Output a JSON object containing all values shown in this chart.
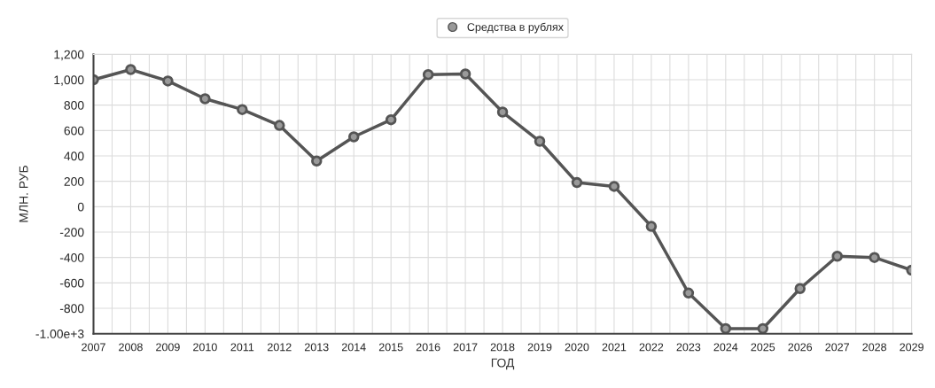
{
  "chart_data": {
    "type": "line",
    "xlabel": "ГОД",
    "ylabel": "МЛН. РУБ",
    "x": [
      2007,
      2008,
      2009,
      2010,
      2011,
      2012,
      2013,
      2014,
      2015,
      2016,
      2017,
      2018,
      2019,
      2020,
      2021,
      2022,
      2023,
      2024,
      2025,
      2026,
      2027,
      2028,
      2029
    ],
    "series": [
      {
        "name": "Средства в рублях",
        "color": "#555555",
        "values": [
          1000,
          1080,
          990,
          850,
          765,
          640,
          360,
          550,
          685,
          1040,
          1045,
          745,
          515,
          190,
          160,
          -155,
          -680,
          -960,
          -960,
          -645,
          -390,
          -400,
          -500
        ]
      }
    ],
    "xlim": [
      2007,
      2029
    ],
    "xticks": [
      2007,
      2008,
      2009,
      2010,
      2011,
      2012,
      2013,
      2014,
      2015,
      2016,
      2017,
      2018,
      2019,
      2020,
      2021,
      2022,
      2023,
      2024,
      2025,
      2026,
      2027,
      2028,
      2029
    ],
    "ylim": [
      -1000,
      1200
    ],
    "yticks": [
      {
        "value": -1000,
        "label": "-1.00e+3"
      },
      -800,
      -600,
      -400,
      -200,
      0,
      200,
      400,
      600,
      800,
      {
        "value": 1000,
        "label": "1,000"
      },
      {
        "value": 1200,
        "label": "1,200"
      }
    ],
    "grid": true,
    "legend": "top",
    "marker": "circle",
    "line_style": "solid"
  }
}
